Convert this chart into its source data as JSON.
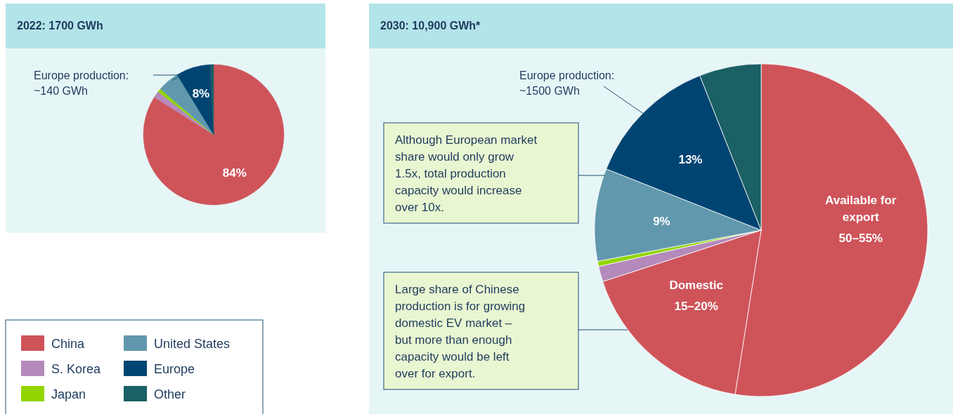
{
  "chart_data": [
    {
      "type": "pie",
      "title": "2022: 1700 GWh",
      "categories": [
        "China",
        "S. Korea",
        "Japan",
        "United States",
        "Europe",
        "Other"
      ],
      "values": [
        84,
        1.5,
        0.8,
        5,
        8,
        0.7
      ],
      "colors": [
        "#cf545a",
        "#b48abc",
        "#93d500",
        "#6198ae",
        "#004572",
        "#1a6064"
      ],
      "value_labels": [
        "84%",
        null,
        null,
        null,
        "8%",
        null
      ],
      "legend": "bottom",
      "annotations": [
        "Europe production:\n~140 GWh"
      ]
    },
    {
      "type": "pie",
      "title": "2030: 10,900 GWh*",
      "categories": [
        "Available for export",
        "Domestic",
        null,
        null,
        null,
        null,
        null
      ],
      "values": [
        52.5,
        17.5,
        1.5,
        0.5,
        9,
        13,
        6
      ],
      "colors": [
        "#cf545a",
        "#cf545a",
        "#b48abc",
        "#93d500",
        "#6198ae",
        "#004572",
        "#1a6064"
      ],
      "value_labels": [
        null,
        null,
        null,
        null,
        "9%",
        "13%",
        null
      ],
      "annotations": [
        {
          "text": "50–55%",
          "x": "Available for export"
        },
        {
          "text": "15–20%",
          "x": "Domestic"
        },
        "Europe production:\n~1500 GWh",
        "Although European market\nshare would only grow\n1.5x, total production\ncapacity would increase\nover 10x.",
        "Large share of Chinese\nproduction is for growing\ndomestic EV market –\nbut more than enough\ncapacity would be left\nover for export."
      ]
    }
  ]
}
